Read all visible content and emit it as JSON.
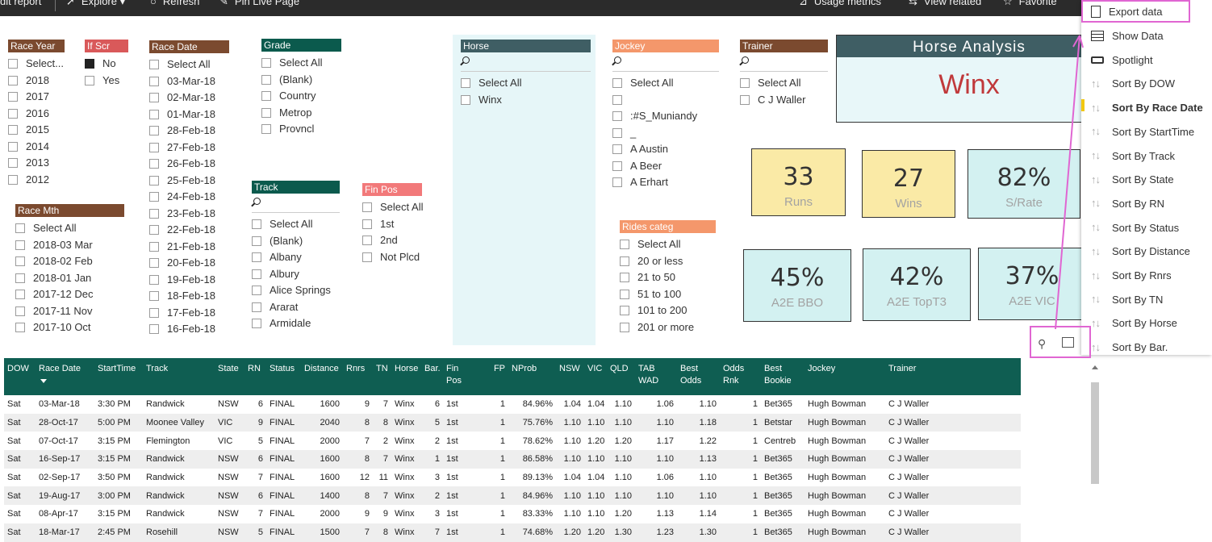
{
  "topbar": {
    "edit": "dit report",
    "explore": "Explore",
    "refresh": "Refresh",
    "pin": "Pin Live Page",
    "usage": "Usage metrics",
    "view_related": "View related",
    "favorite": "Favorite"
  },
  "slicers": {
    "race_year": {
      "title": "Race Year",
      "items": [
        "Select...",
        "2018",
        "2017",
        "2016",
        "2015",
        "2014",
        "2013",
        "2012"
      ]
    },
    "if_scr": {
      "title": "If Scr",
      "items": [
        "No",
        "Yes"
      ]
    },
    "race_date": {
      "title": "Race Date",
      "items": [
        "Select All",
        "03-Mar-18",
        "02-Mar-18",
        "01-Mar-18",
        "28-Feb-18",
        "27-Feb-18",
        "26-Feb-18",
        "25-Feb-18",
        "24-Feb-18",
        "23-Feb-18",
        "22-Feb-18",
        "21-Feb-18",
        "20-Feb-18",
        "19-Feb-18",
        "18-Feb-18",
        "17-Feb-18",
        "16-Feb-18"
      ]
    },
    "grade": {
      "title": "Grade",
      "items": [
        "Select All",
        "(Blank)",
        "Country",
        "Metrop",
        "Provncl"
      ]
    },
    "horse": {
      "title": "Horse",
      "items": [
        "Select All",
        "Winx"
      ]
    },
    "jockey": {
      "title": "Jockey",
      "items": [
        "Select All",
        "",
        ":#S_Muniandy",
        "_",
        "A Austin",
        "A Beer",
        "A Erhart"
      ]
    },
    "trainer": {
      "title": "Trainer",
      "items": [
        "Select All",
        "C J Waller"
      ]
    },
    "race_mth": {
      "title": "Race Mth",
      "items": [
        "Select All",
        "2018-03 Mar",
        "2018-02 Feb",
        "2018-01 Jan",
        "2017-12 Dec",
        "2017-11 Nov",
        "2017-10 Oct"
      ]
    },
    "track": {
      "title": "Track",
      "items": [
        "Select All",
        "(Blank)",
        "Albany",
        "Albury",
        "Alice Springs",
        "Ararat",
        "Armidale"
      ]
    },
    "fin_pos": {
      "title": "Fin Pos",
      "items": [
        "Select All",
        "1st",
        "2nd",
        "Not Plcd"
      ]
    },
    "rides_categ": {
      "title": "Rides categ",
      "items": [
        "Select All",
        "20 or less",
        "21 to 50",
        "51 to 100",
        "101 to 200",
        "201 or more"
      ]
    }
  },
  "title_card": {
    "title": "Horse  Analysis",
    "value": "Winx"
  },
  "kpis": {
    "runs": {
      "value": "33",
      "label": "Runs"
    },
    "wins": {
      "value": "27",
      "label": "Wins"
    },
    "srate": {
      "value": "82%",
      "label": "S/Rate"
    },
    "a2e_bbo": {
      "value": "45%",
      "label": "A2E BBO"
    },
    "a2e_topt3": {
      "value": "42%",
      "label": "A2E TopT3"
    },
    "a2e_vic": {
      "value": "37%",
      "label": "A2E VIC"
    }
  },
  "table": {
    "headers": [
      "DOW",
      "Race Date",
      "StartTime",
      "Track",
      "State",
      "RN",
      "Status",
      "Distance",
      "Rnrs",
      "TN",
      "Horse",
      "Bar.",
      "Fin Pos",
      "FP",
      "NProb",
      "NSW",
      "VIC",
      "QLD",
      "TAB WAD",
      "Best Odds",
      "Odds Rnk",
      "Best Bookie",
      "Jockey",
      "Trainer"
    ],
    "rows": [
      [
        "Sat",
        "03-Mar-18",
        "3:30 PM",
        "Randwick",
        "NSW",
        "6",
        "FINAL",
        "1600",
        "9",
        "7",
        "Winx",
        "6",
        "1st",
        "1",
        "84.96%",
        "1.04",
        "1.04",
        "1.10",
        "1.06",
        "1.10",
        "1",
        "Bet365",
        "Hugh Bowman",
        "C J Waller"
      ],
      [
        "Sat",
        "28-Oct-17",
        "5:00 PM",
        "Moonee Valley",
        "VIC",
        "9",
        "FINAL",
        "2040",
        "8",
        "8",
        "Winx",
        "5",
        "1st",
        "1",
        "75.76%",
        "1.10",
        "1.10",
        "1.10",
        "1.10",
        "1.18",
        "1",
        "Betstar",
        "Hugh Bowman",
        "C J Waller"
      ],
      [
        "Sat",
        "07-Oct-17",
        "3:15 PM",
        "Flemington",
        "VIC",
        "5",
        "FINAL",
        "2000",
        "7",
        "2",
        "Winx",
        "2",
        "1st",
        "1",
        "78.62%",
        "1.10",
        "1.20",
        "1.20",
        "1.17",
        "1.22",
        "1",
        "Centreb",
        "Hugh Bowman",
        "C J Waller"
      ],
      [
        "Sat",
        "16-Sep-17",
        "3:15 PM",
        "Randwick",
        "NSW",
        "6",
        "FINAL",
        "1600",
        "8",
        "7",
        "Winx",
        "1",
        "1st",
        "1",
        "86.58%",
        "1.10",
        "1.10",
        "1.10",
        "1.10",
        "1.13",
        "1",
        "Bet365",
        "Hugh Bowman",
        "C J Waller"
      ],
      [
        "Sat",
        "02-Sep-17",
        "3:50 PM",
        "Randwick",
        "NSW",
        "7",
        "FINAL",
        "1600",
        "12",
        "11",
        "Winx",
        "3",
        "1st",
        "1",
        "89.13%",
        "1.04",
        "1.04",
        "1.10",
        "1.06",
        "1.10",
        "1",
        "Bet365",
        "Hugh Bowman",
        "C J Waller"
      ],
      [
        "Sat",
        "19-Aug-17",
        "3:00 PM",
        "Randwick",
        "NSW",
        "6",
        "FINAL",
        "1400",
        "8",
        "7",
        "Winx",
        "2",
        "1st",
        "1",
        "84.96%",
        "1.10",
        "1.10",
        "1.10",
        "1.10",
        "1.10",
        "1",
        "Bet365",
        "Hugh Bowman",
        "C J Waller"
      ],
      [
        "Sat",
        "08-Apr-17",
        "3:15 PM",
        "Randwick",
        "NSW",
        "7",
        "FINAL",
        "2000",
        "9",
        "9",
        "Winx",
        "3",
        "1st",
        "1",
        "83.33%",
        "1.10",
        "1.10",
        "1.20",
        "1.13",
        "1.14",
        "1",
        "Bet365",
        "Hugh Bowman",
        "C J Waller"
      ],
      [
        "Sat",
        "18-Mar-17",
        "2:45 PM",
        "Rosehill",
        "NSW",
        "5",
        "FINAL",
        "1500",
        "7",
        "8",
        "Winx",
        "7",
        "1st",
        "1",
        "74.68%",
        "1.20",
        "1.20",
        "1.30",
        "1.23",
        "1.30",
        "1",
        "Bet365",
        "Hugh Bowman",
        "C J Waller"
      ]
    ]
  },
  "menu": {
    "items": [
      "Export data",
      "Show Data",
      "Spotlight",
      "Sort By DOW",
      "Sort By Race Date",
      "Sort By StartTime",
      "Sort By Track",
      "Sort By State",
      "Sort By RN",
      "Sort By Status",
      "Sort By Distance",
      "Sort By Rnrs",
      "Sort By TN",
      "Sort By Horse",
      "Sort By Bar."
    ]
  },
  "colors": {
    "race_year": "#7b4a2f",
    "if_scr": "#d9595a",
    "race_date": "#7b4a2f",
    "grade": "#0b5a4d",
    "horse": "#3f5e64",
    "jockey": "#f4976b",
    "trainer": "#7b4a2f",
    "race_mth": "#7b4a2f",
    "track": "#0b5a4d",
    "fin_pos": "#f2797a",
    "rides_categ": "#f4976b",
    "highlight": "#e066d2"
  }
}
